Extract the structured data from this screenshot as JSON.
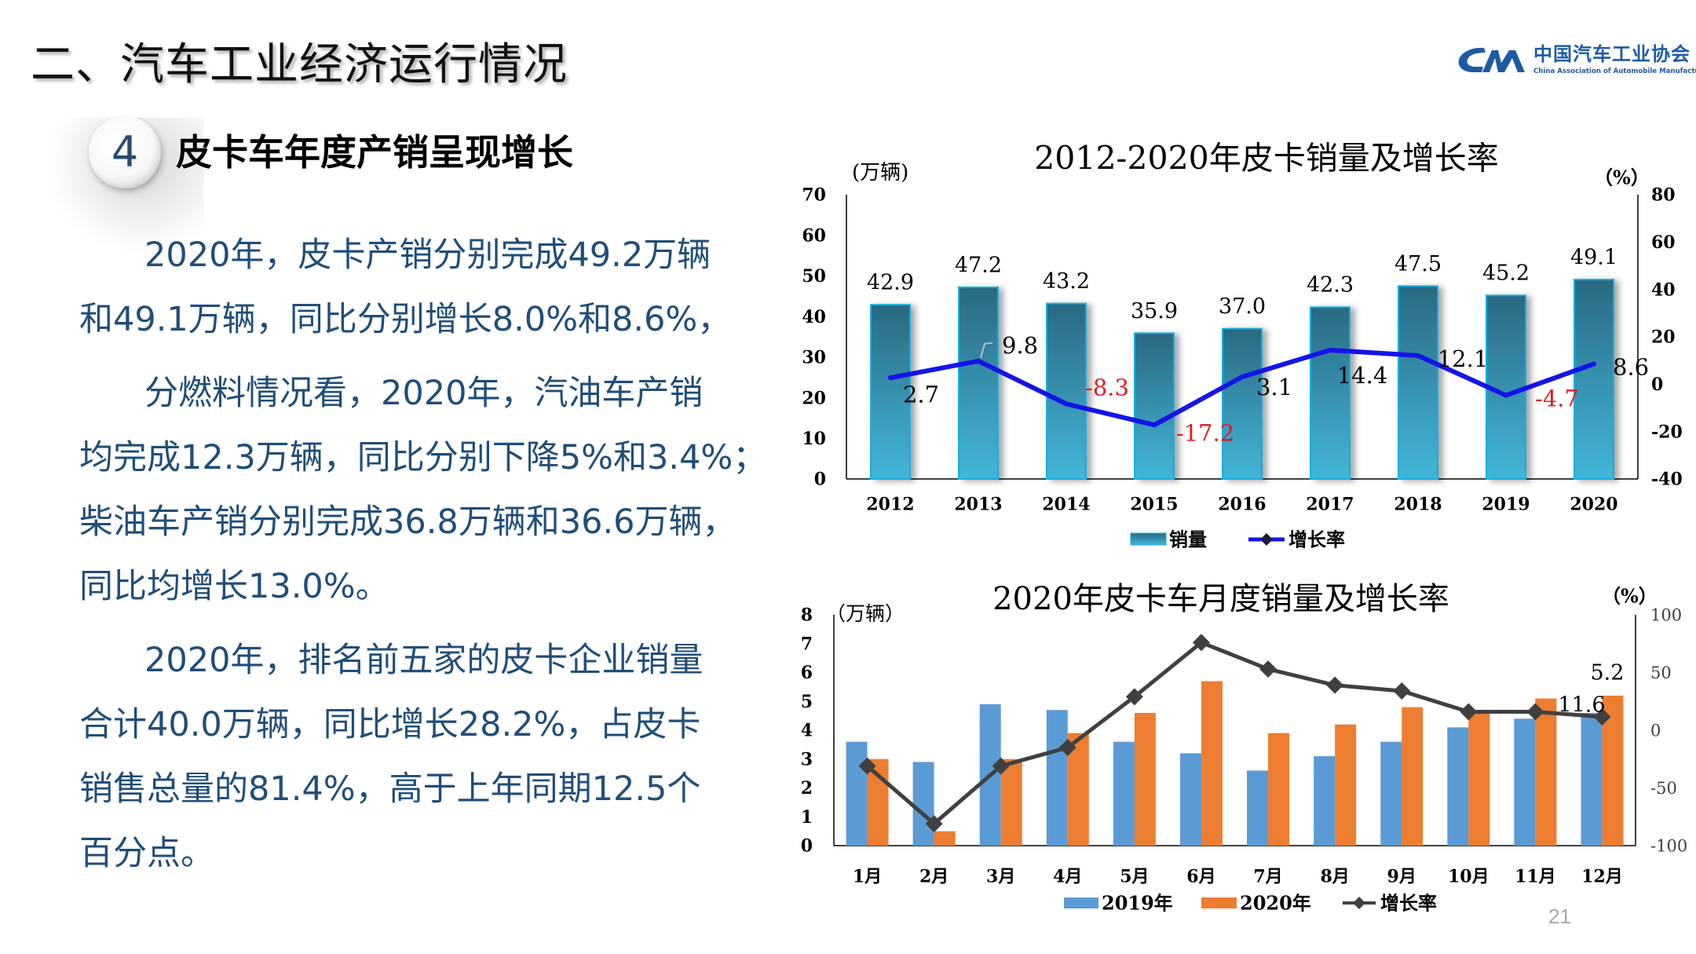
{
  "header": {
    "title": "二、汽车工业经济运行情况"
  },
  "logo": {
    "name_cn": "中国汽车工业协会",
    "name_en": "China Association of Automobile Manufacturers",
    "brand_color": "#1d5aa5"
  },
  "section": {
    "number": "4",
    "title": "皮卡车年度产销呈现增长"
  },
  "body": {
    "text_color": "#1f4e79",
    "paragraphs": [
      {
        "lines": [
          "2020年，皮卡产销分别完成49.2万辆",
          "和49.1万辆，同比分别增长8.0%和8.6%，"
        ]
      },
      {
        "lines": [
          "分燃料情况看，2020年，汽油车产销",
          "均完成12.3万辆，同比分别下降5%和3.4%；",
          "柴油车产销分别完成36.8万辆和36.6万辆，",
          "同比均增长13.0%。"
        ]
      },
      {
        "lines": [
          "2020年，排名前五家的皮卡企业销量",
          "合计40.0万辆，同比增长28.2%，占皮卡",
          "销售总量的81.4%，高于上年同期12.5个",
          "百分点。"
        ]
      }
    ]
  },
  "page_number": "21",
  "chart_data": [
    {
      "type": "bar+line",
      "title": "2012-2020年皮卡销量及增长率",
      "ylabel": "(万辆)",
      "y2label": "（%）",
      "categories": [
        "2012",
        "2013",
        "2014",
        "2015",
        "2016",
        "2017",
        "2018",
        "2019",
        "2020"
      ],
      "series": [
        {
          "name": "销量",
          "type": "bar",
          "axis": "left",
          "values": [
            42.9,
            47.2,
            43.2,
            35.9,
            37.0,
            42.3,
            47.5,
            45.2,
            49.1
          ]
        },
        {
          "name": "增长率",
          "type": "line",
          "axis": "right",
          "values": [
            2.7,
            9.8,
            -8.3,
            -17.2,
            3.1,
            14.4,
            12.1,
            -4.7,
            8.6
          ]
        }
      ],
      "ylim": [
        0,
        70
      ],
      "yticks": [
        0,
        10,
        20,
        30,
        40,
        50,
        60,
        70
      ],
      "y2lim": [
        -40,
        80
      ],
      "y2ticks": [
        -40,
        -20,
        0,
        20,
        40,
        60,
        80
      ],
      "show_data_labels": true,
      "grid": false,
      "legend": "bottom",
      "colors": {
        "bar_top": "#2a6a82",
        "bar_bottom": "#43b6da",
        "bar_edge": "#17aee0",
        "line": "#1414e6",
        "legend_marker": "#1b1b40",
        "label": "#000000",
        "negative_label": "#e31a1c"
      }
    },
    {
      "type": "bar+line",
      "title": "2020年皮卡车月度销量及增长率",
      "ylabel": "（万辆）",
      "y2label": "（%）",
      "categories": [
        "1月",
        "2月",
        "3月",
        "4月",
        "5月",
        "6月",
        "7月",
        "8月",
        "9月",
        "10月",
        "11月",
        "12月"
      ],
      "series": [
        {
          "name": "2019年",
          "type": "bar",
          "axis": "left",
          "values": [
            3.6,
            2.9,
            4.9,
            4.7,
            3.6,
            3.2,
            2.6,
            3.1,
            3.6,
            4.1,
            4.4,
            4.6
          ]
        },
        {
          "name": "2020年",
          "type": "bar",
          "axis": "left",
          "values": [
            3.0,
            0.5,
            3.0,
            3.9,
            4.6,
            5.7,
            3.9,
            4.2,
            4.8,
            4.7,
            5.1,
            5.2
          ]
        },
        {
          "name": "增长率",
          "type": "line",
          "axis": "right",
          "values": [
            -31,
            -81,
            -31,
            -15,
            29,
            76,
            53,
            39,
            34,
            16,
            16,
            11.6
          ]
        }
      ],
      "data_labels": [
        {
          "series_index": 1,
          "category_index": 11,
          "text": "5.2"
        },
        {
          "series_index": 2,
          "category_index": 11,
          "text": "11.6"
        }
      ],
      "ylim": [
        0,
        8
      ],
      "yticks": [
        0,
        1,
        2,
        3,
        4,
        5,
        6,
        7,
        8
      ],
      "y2lim": [
        -100,
        100
      ],
      "y2ticks": [
        -100,
        -50,
        0,
        50,
        100
      ],
      "grid": false,
      "legend": "bottom",
      "colors": {
        "bar_2019": "#5b9bd5",
        "bar_2020": "#ed7d31",
        "line": "#404040",
        "right_tick": "#404040"
      }
    }
  ]
}
